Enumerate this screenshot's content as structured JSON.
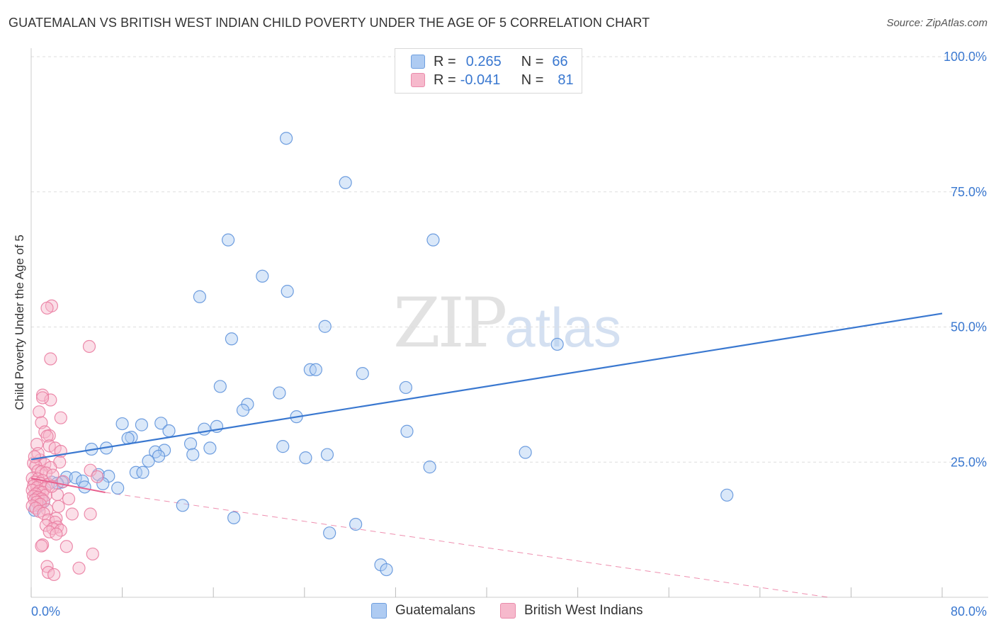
{
  "title": "GUATEMALAN VS BRITISH WEST INDIAN CHILD POVERTY UNDER THE AGE OF 5 CORRELATION CHART",
  "source": "Source: ZipAtlas.com",
  "watermark": {
    "zip": "ZIP",
    "atlas": "atlas"
  },
  "colors": {
    "blue": "#3a78d0",
    "blue_fill": "#aecbf2",
    "pink": "#e8608e",
    "pink_fill": "#f6b9cc",
    "grid": "#dddddd"
  },
  "legend_top": {
    "rows": [
      {
        "r_label": "R =",
        "r_value": "0.265",
        "n_label": "N =",
        "n_value": "66"
      },
      {
        "r_label": "R =",
        "r_value": "-0.041",
        "n_label": "N =",
        "n_value": "81"
      }
    ]
  },
  "legend_bottom": {
    "series1": "Guatemalans",
    "series2": "British West Indians"
  },
  "chart_data": {
    "type": "scatter",
    "title": "GUATEMALAN VS BRITISH WEST INDIAN CHILD POVERTY UNDER THE AGE OF 5 CORRELATION CHART",
    "xlabel": "",
    "ylabel": "Child Poverty Under the Age of 5",
    "xlim": [
      0,
      80
    ],
    "ylim": [
      0,
      100
    ],
    "x_tick_labels": [
      "0.0%",
      "80.0%"
    ],
    "y_tick_labels": [
      "25.0%",
      "50.0%",
      "75.0%",
      "100.0%"
    ],
    "y_ticks": [
      25,
      50,
      75,
      100
    ],
    "grid": true,
    "series": [
      {
        "name": "Guatemalans",
        "R": 0.265,
        "N": 66,
        "trend": {
          "x": [
            0,
            80
          ],
          "y": [
            25.5,
            52.5
          ],
          "style": "solid"
        },
        "points": [
          [
            22.4,
            84.9
          ],
          [
            27.6,
            76.7
          ],
          [
            17.3,
            66.1
          ],
          [
            35.3,
            66.1
          ],
          [
            20.3,
            59.4
          ],
          [
            22.5,
            56.6
          ],
          [
            14.8,
            55.6
          ],
          [
            25.8,
            50.1
          ],
          [
            17.6,
            47.8
          ],
          [
            46.2,
            46.8
          ],
          [
            24.5,
            42.1
          ],
          [
            25.0,
            42.1
          ],
          [
            29.1,
            41.4
          ],
          [
            16.6,
            39.0
          ],
          [
            21.8,
            37.8
          ],
          [
            32.9,
            38.8
          ],
          [
            19.0,
            35.7
          ],
          [
            18.6,
            34.6
          ],
          [
            23.3,
            33.4
          ],
          [
            8.0,
            32.1
          ],
          [
            11.4,
            32.2
          ],
          [
            9.7,
            31.9
          ],
          [
            16.3,
            31.6
          ],
          [
            15.2,
            31.1
          ],
          [
            12.1,
            30.8
          ],
          [
            33.0,
            30.7
          ],
          [
            8.8,
            29.6
          ],
          [
            8.5,
            29.4
          ],
          [
            14.0,
            28.4
          ],
          [
            22.1,
            27.9
          ],
          [
            6.6,
            27.6
          ],
          [
            5.3,
            27.4
          ],
          [
            11.7,
            27.2
          ],
          [
            15.7,
            27.6
          ],
          [
            10.9,
            26.9
          ],
          [
            43.4,
            26.8
          ],
          [
            14.2,
            26.4
          ],
          [
            26.0,
            26.4
          ],
          [
            11.2,
            26.1
          ],
          [
            24.1,
            25.8
          ],
          [
            10.3,
            25.2
          ],
          [
            35.0,
            24.1
          ],
          [
            5.9,
            22.7
          ],
          [
            9.2,
            23.1
          ],
          [
            9.8,
            23.1
          ],
          [
            6.8,
            22.4
          ],
          [
            3.1,
            22.2
          ],
          [
            3.9,
            22.1
          ],
          [
            4.5,
            21.5
          ],
          [
            2.7,
            21.3
          ],
          [
            1.8,
            21.3
          ],
          [
            2.3,
            21.1
          ],
          [
            4.7,
            20.4
          ],
          [
            7.6,
            20.2
          ],
          [
            6.3,
            21.0
          ],
          [
            0.5,
            18.5
          ],
          [
            1.1,
            17.7
          ],
          [
            0.7,
            16.9
          ],
          [
            0.3,
            16.1
          ],
          [
            13.3,
            17.0
          ],
          [
            17.8,
            14.7
          ],
          [
            61.1,
            18.9
          ],
          [
            28.5,
            13.5
          ],
          [
            26.2,
            11.9
          ],
          [
            30.7,
            6.0
          ],
          [
            31.2,
            5.1
          ]
        ]
      },
      {
        "name": "British West Indians",
        "R": -0.041,
        "N": 81,
        "trend_solid": {
          "x": [
            0,
            6.5
          ],
          "y": [
            22.0,
            19.4
          ]
        },
        "trend_dashed": {
          "x": [
            6.5,
            70
          ],
          "y": [
            19.4,
            0
          ]
        },
        "points": [
          [
            1.8,
            53.9
          ],
          [
            1.4,
            53.5
          ],
          [
            5.1,
            46.4
          ],
          [
            1.7,
            44.1
          ],
          [
            1.0,
            37.4
          ],
          [
            1.7,
            36.5
          ],
          [
            1.0,
            36.9
          ],
          [
            0.7,
            34.3
          ],
          [
            2.6,
            33.2
          ],
          [
            0.9,
            32.3
          ],
          [
            1.2,
            30.6
          ],
          [
            1.6,
            29.9
          ],
          [
            1.4,
            29.8
          ],
          [
            0.5,
            28.3
          ],
          [
            1.6,
            28.0
          ],
          [
            2.1,
            27.6
          ],
          [
            2.6,
            27.0
          ],
          [
            0.8,
            25.4
          ],
          [
            2.5,
            25.0
          ],
          [
            0.2,
            24.8
          ],
          [
            1.2,
            24.6
          ],
          [
            0.4,
            24.3
          ],
          [
            1.7,
            24.0
          ],
          [
            0.6,
            23.4
          ],
          [
            5.2,
            23.5
          ],
          [
            0.9,
            23.2
          ],
          [
            1.3,
            23.0
          ],
          [
            5.8,
            22.3
          ],
          [
            0.1,
            22.0
          ],
          [
            0.6,
            21.9
          ],
          [
            1.0,
            21.6
          ],
          [
            0.3,
            21.3
          ],
          [
            0.8,
            21.1
          ],
          [
            1.5,
            20.9
          ],
          [
            0.2,
            20.6
          ],
          [
            0.5,
            20.3
          ],
          [
            1.2,
            20.1
          ],
          [
            0.1,
            19.8
          ],
          [
            0.7,
            19.6
          ],
          [
            1.0,
            19.4
          ],
          [
            0.4,
            19.1
          ],
          [
            1.3,
            18.9
          ],
          [
            0.2,
            18.7
          ],
          [
            2.3,
            19.0
          ],
          [
            0.6,
            18.5
          ],
          [
            0.9,
            18.2
          ],
          [
            0.3,
            18.0
          ],
          [
            1.1,
            17.8
          ],
          [
            0.5,
            17.6
          ],
          [
            0.8,
            17.2
          ],
          [
            0.1,
            16.9
          ],
          [
            0.4,
            16.5
          ],
          [
            1.4,
            16.2
          ],
          [
            0.7,
            15.9
          ],
          [
            1.1,
            15.5
          ],
          [
            3.6,
            15.4
          ],
          [
            5.2,
            15.4
          ],
          [
            1.5,
            14.3
          ],
          [
            2.2,
            14.6
          ],
          [
            2.1,
            13.9
          ],
          [
            1.3,
            13.3
          ],
          [
            2.3,
            13.0
          ],
          [
            1.9,
            12.7
          ],
          [
            2.6,
            12.4
          ],
          [
            1.6,
            12.1
          ],
          [
            2.2,
            11.7
          ],
          [
            1.0,
            9.7
          ],
          [
            0.9,
            9.5
          ],
          [
            3.1,
            9.4
          ],
          [
            5.4,
            8.0
          ],
          [
            1.4,
            5.7
          ],
          [
            4.2,
            5.4
          ],
          [
            1.5,
            4.6
          ],
          [
            2.0,
            4.2
          ],
          [
            0.6,
            26.6
          ],
          [
            2.8,
            21.4
          ],
          [
            1.9,
            22.6
          ],
          [
            3.3,
            18.2
          ],
          [
            0.3,
            26.0
          ],
          [
            2.4,
            16.8
          ],
          [
            1.8,
            20.5
          ]
        ]
      }
    ]
  }
}
